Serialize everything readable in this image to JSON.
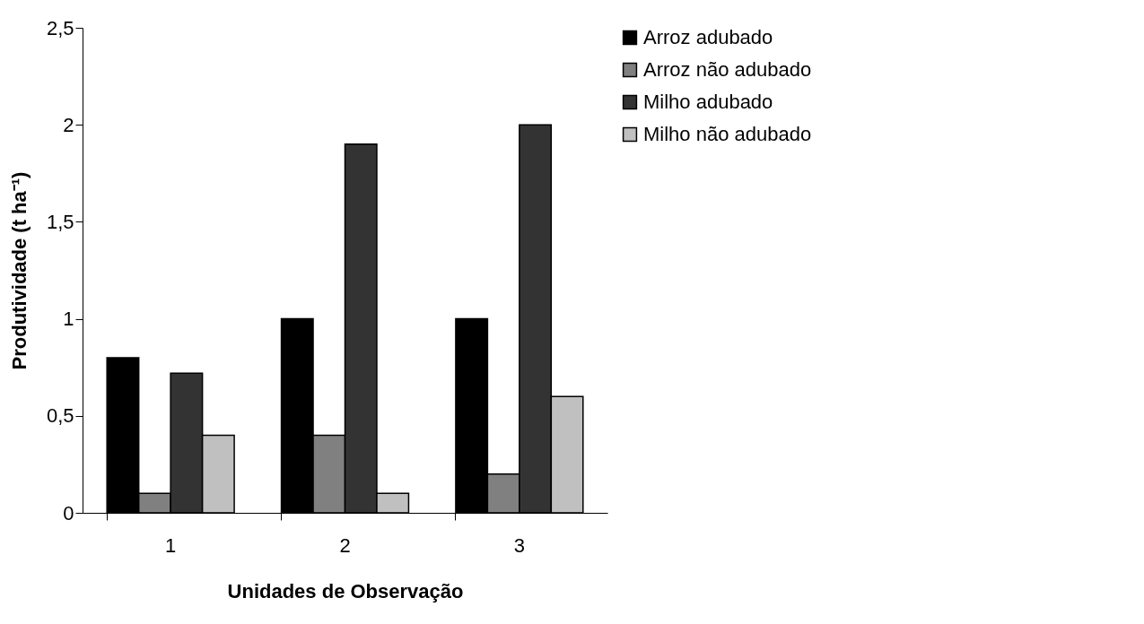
{
  "chart_data": {
    "type": "bar",
    "categories": [
      "1",
      "2",
      "3"
    ],
    "xlabel": "Unidades de Observação",
    "ylabel": "Produtividade (t ha⁻¹)",
    "series": [
      {
        "name": "Arroz adubado",
        "color": "#000000",
        "values": [
          0.8,
          1.0,
          1.0
        ]
      },
      {
        "name": "Arroz não adubado",
        "color": "#808080",
        "values": [
          0.1,
          0.4,
          0.2
        ]
      },
      {
        "name": "Milho adubado",
        "color": "#333333",
        "values": [
          0.72,
          1.9,
          2.0
        ]
      },
      {
        "name": "Milho não adubado",
        "color": "#c0c0c0",
        "values": [
          0.4,
          0.1,
          0.6
        ]
      }
    ],
    "ylim": [
      0,
      2.5
    ],
    "yticks": [
      0,
      {
        "value": 0.5,
        "label": "0,5"
      },
      1,
      {
        "value": 1.5,
        "label": "1,5"
      },
      2,
      {
        "value": 2.5,
        "label": "2,5"
      }
    ],
    "grid": false,
    "legend": "top right"
  }
}
